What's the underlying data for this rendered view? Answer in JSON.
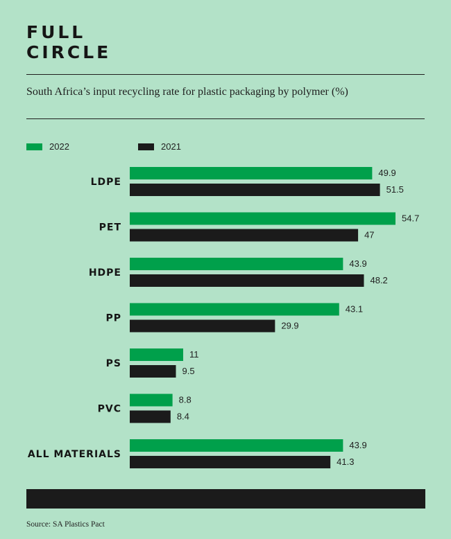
{
  "header": {
    "title_line1": "FULL",
    "title_line2": "CIRCLE"
  },
  "source": "Source: SA Plastics Pact",
  "colors": {
    "background": "#b3e2c8",
    "series_2022": "#00a04b",
    "series_2021": "#1b1b1b"
  },
  "chart_data": {
    "type": "bar",
    "orientation": "horizontal",
    "title": "South Africa’s input recycling rate for plastic packaging by polymer (%)",
    "categories": [
      "LDPE",
      "PET",
      "HDPE",
      "PP",
      "PS",
      "PVC",
      "ALL MATERIALS"
    ],
    "series": [
      {
        "name": "2022",
        "values": [
          49.9,
          54.7,
          43.9,
          43.1,
          11,
          8.8,
          43.9
        ],
        "labels": [
          "49.9",
          "54.7",
          "43.9",
          "43.1",
          "11",
          "8.8",
          "43.9"
        ]
      },
      {
        "name": "2021",
        "values": [
          51.5,
          47,
          48.2,
          29.9,
          9.5,
          8.4,
          41.3
        ],
        "labels": [
          "51.5",
          "47",
          "48.2",
          "29.9",
          "9.5",
          "8.4",
          "41.3"
        ]
      }
    ],
    "xlim": [
      0,
      60
    ],
    "legend_position": "top-left",
    "grid": false
  }
}
